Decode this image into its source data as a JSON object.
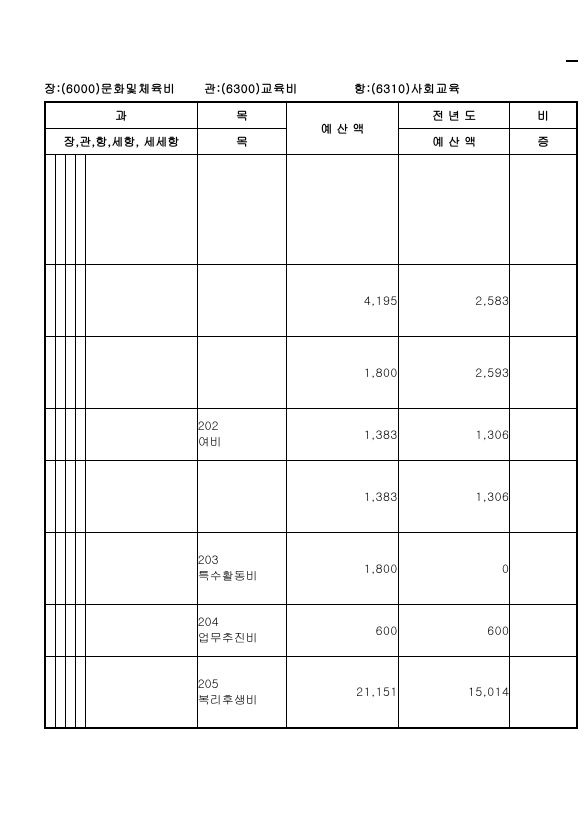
{
  "breadcrumb": {
    "jang": "장:(6000)문화및체육비",
    "gwan": "관:(6300)교육비",
    "hang": "항:(6310)사회교육"
  },
  "header": {
    "gwa": "과",
    "mok_group": "목",
    "hierarchy": "장,관,항,세항, 세세항",
    "mok": "목",
    "budget": "예 산 액",
    "prev_top": "전 년 도",
    "prev_bot": "예 산 액",
    "bi_top": "비",
    "bi_bot": "증 "
  },
  "rows": [
    {
      "mok_code": "",
      "mok_label": "",
      "budget": "",
      "prev": "",
      "bi": "",
      "cls": "row-tall"
    },
    {
      "mok_code": "",
      "mok_label": "",
      "budget": "4,195",
      "prev": "2,583",
      "bi": "",
      "cls": "row-med"
    },
    {
      "mok_code": "",
      "mok_label": "",
      "budget": "1,800",
      "prev": "2,593",
      "bi": "",
      "cls": "row-med"
    },
    {
      "mok_code": "202",
      "mok_label": "여비",
      "budget": "1,383",
      "prev": "1,306",
      "bi": "",
      "cls": "row-std"
    },
    {
      "mok_code": "",
      "mok_label": "",
      "budget": "1,383",
      "prev": "1,306",
      "bi": "",
      "cls": "row-med"
    },
    {
      "mok_code": "203",
      "mok_label": "특수활동비",
      "budget": "1,800",
      "prev": "0",
      "bi": "",
      "cls": "row-med"
    },
    {
      "mok_code": "204",
      "mok_label": "업무추진비",
      "budget": "600",
      "prev": "600",
      "bi": "",
      "cls": "row-std"
    },
    {
      "mok_code": "205",
      "mok_label": "복리후생비",
      "budget": "21,151",
      "prev": "15,014",
      "bi": "",
      "cls": "row-med"
    }
  ],
  "style": {
    "font_size_header": 12,
    "font_size_body": 12,
    "border_color": "#000000",
    "background": "#ffffff"
  }
}
